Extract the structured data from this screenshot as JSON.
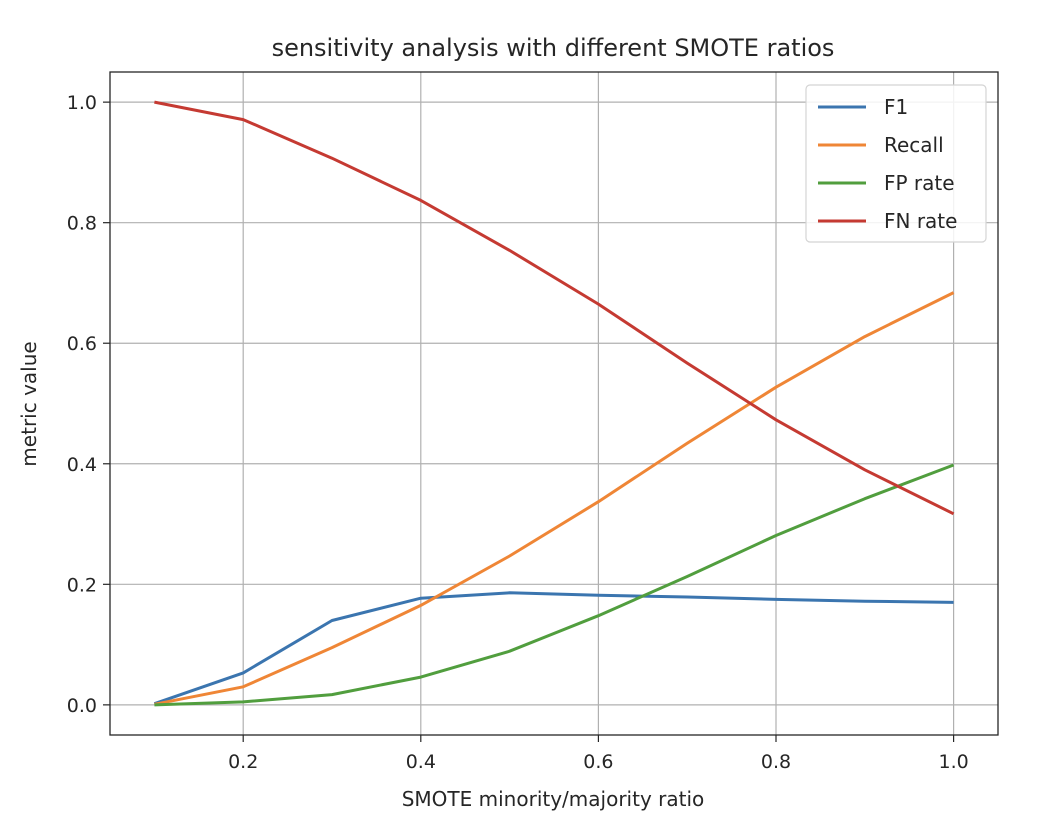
{
  "chart_data": {
    "type": "line",
    "title": "sensitivity analysis with different SMOTE ratios",
    "xlabel": "SMOTE minority/majority ratio",
    "ylabel": "metric value",
    "x": [
      0.1,
      0.2,
      0.3,
      0.4,
      0.5,
      0.6,
      0.7,
      0.8,
      0.9,
      1.0
    ],
    "xlim": [
      0.05,
      1.05
    ],
    "ylim": [
      -0.05,
      1.05
    ],
    "xticks": [
      0.2,
      0.4,
      0.6,
      0.8,
      1.0
    ],
    "xtick_labels": [
      "0.2",
      "0.4",
      "0.6",
      "0.8",
      "1.0"
    ],
    "yticks": [
      0.0,
      0.2,
      0.4,
      0.6,
      0.8,
      1.0
    ],
    "ytick_labels": [
      "0.0",
      "0.2",
      "0.4",
      "0.6",
      "0.8",
      "1.0"
    ],
    "grid": true,
    "legend_position": "top-right",
    "series": [
      {
        "name": "F1",
        "color": "#3b75af",
        "values": [
          0.002,
          0.053,
          0.14,
          0.177,
          0.186,
          0.182,
          0.179,
          0.175,
          0.172,
          0.17
        ]
      },
      {
        "name": "Recall",
        "color": "#ef8636",
        "values": [
          0.001,
          0.03,
          0.095,
          0.165,
          0.247,
          0.337,
          0.434,
          0.527,
          0.611,
          0.684
        ]
      },
      {
        "name": "FP rate",
        "color": "#519e3e",
        "values": [
          0.0,
          0.005,
          0.017,
          0.046,
          0.089,
          0.148,
          0.213,
          0.281,
          0.342,
          0.398
        ]
      },
      {
        "name": "FN rate",
        "color": "#c53a32",
        "values": [
          1.0,
          0.971,
          0.907,
          0.837,
          0.754,
          0.665,
          0.567,
          0.473,
          0.39,
          0.317
        ]
      }
    ]
  }
}
